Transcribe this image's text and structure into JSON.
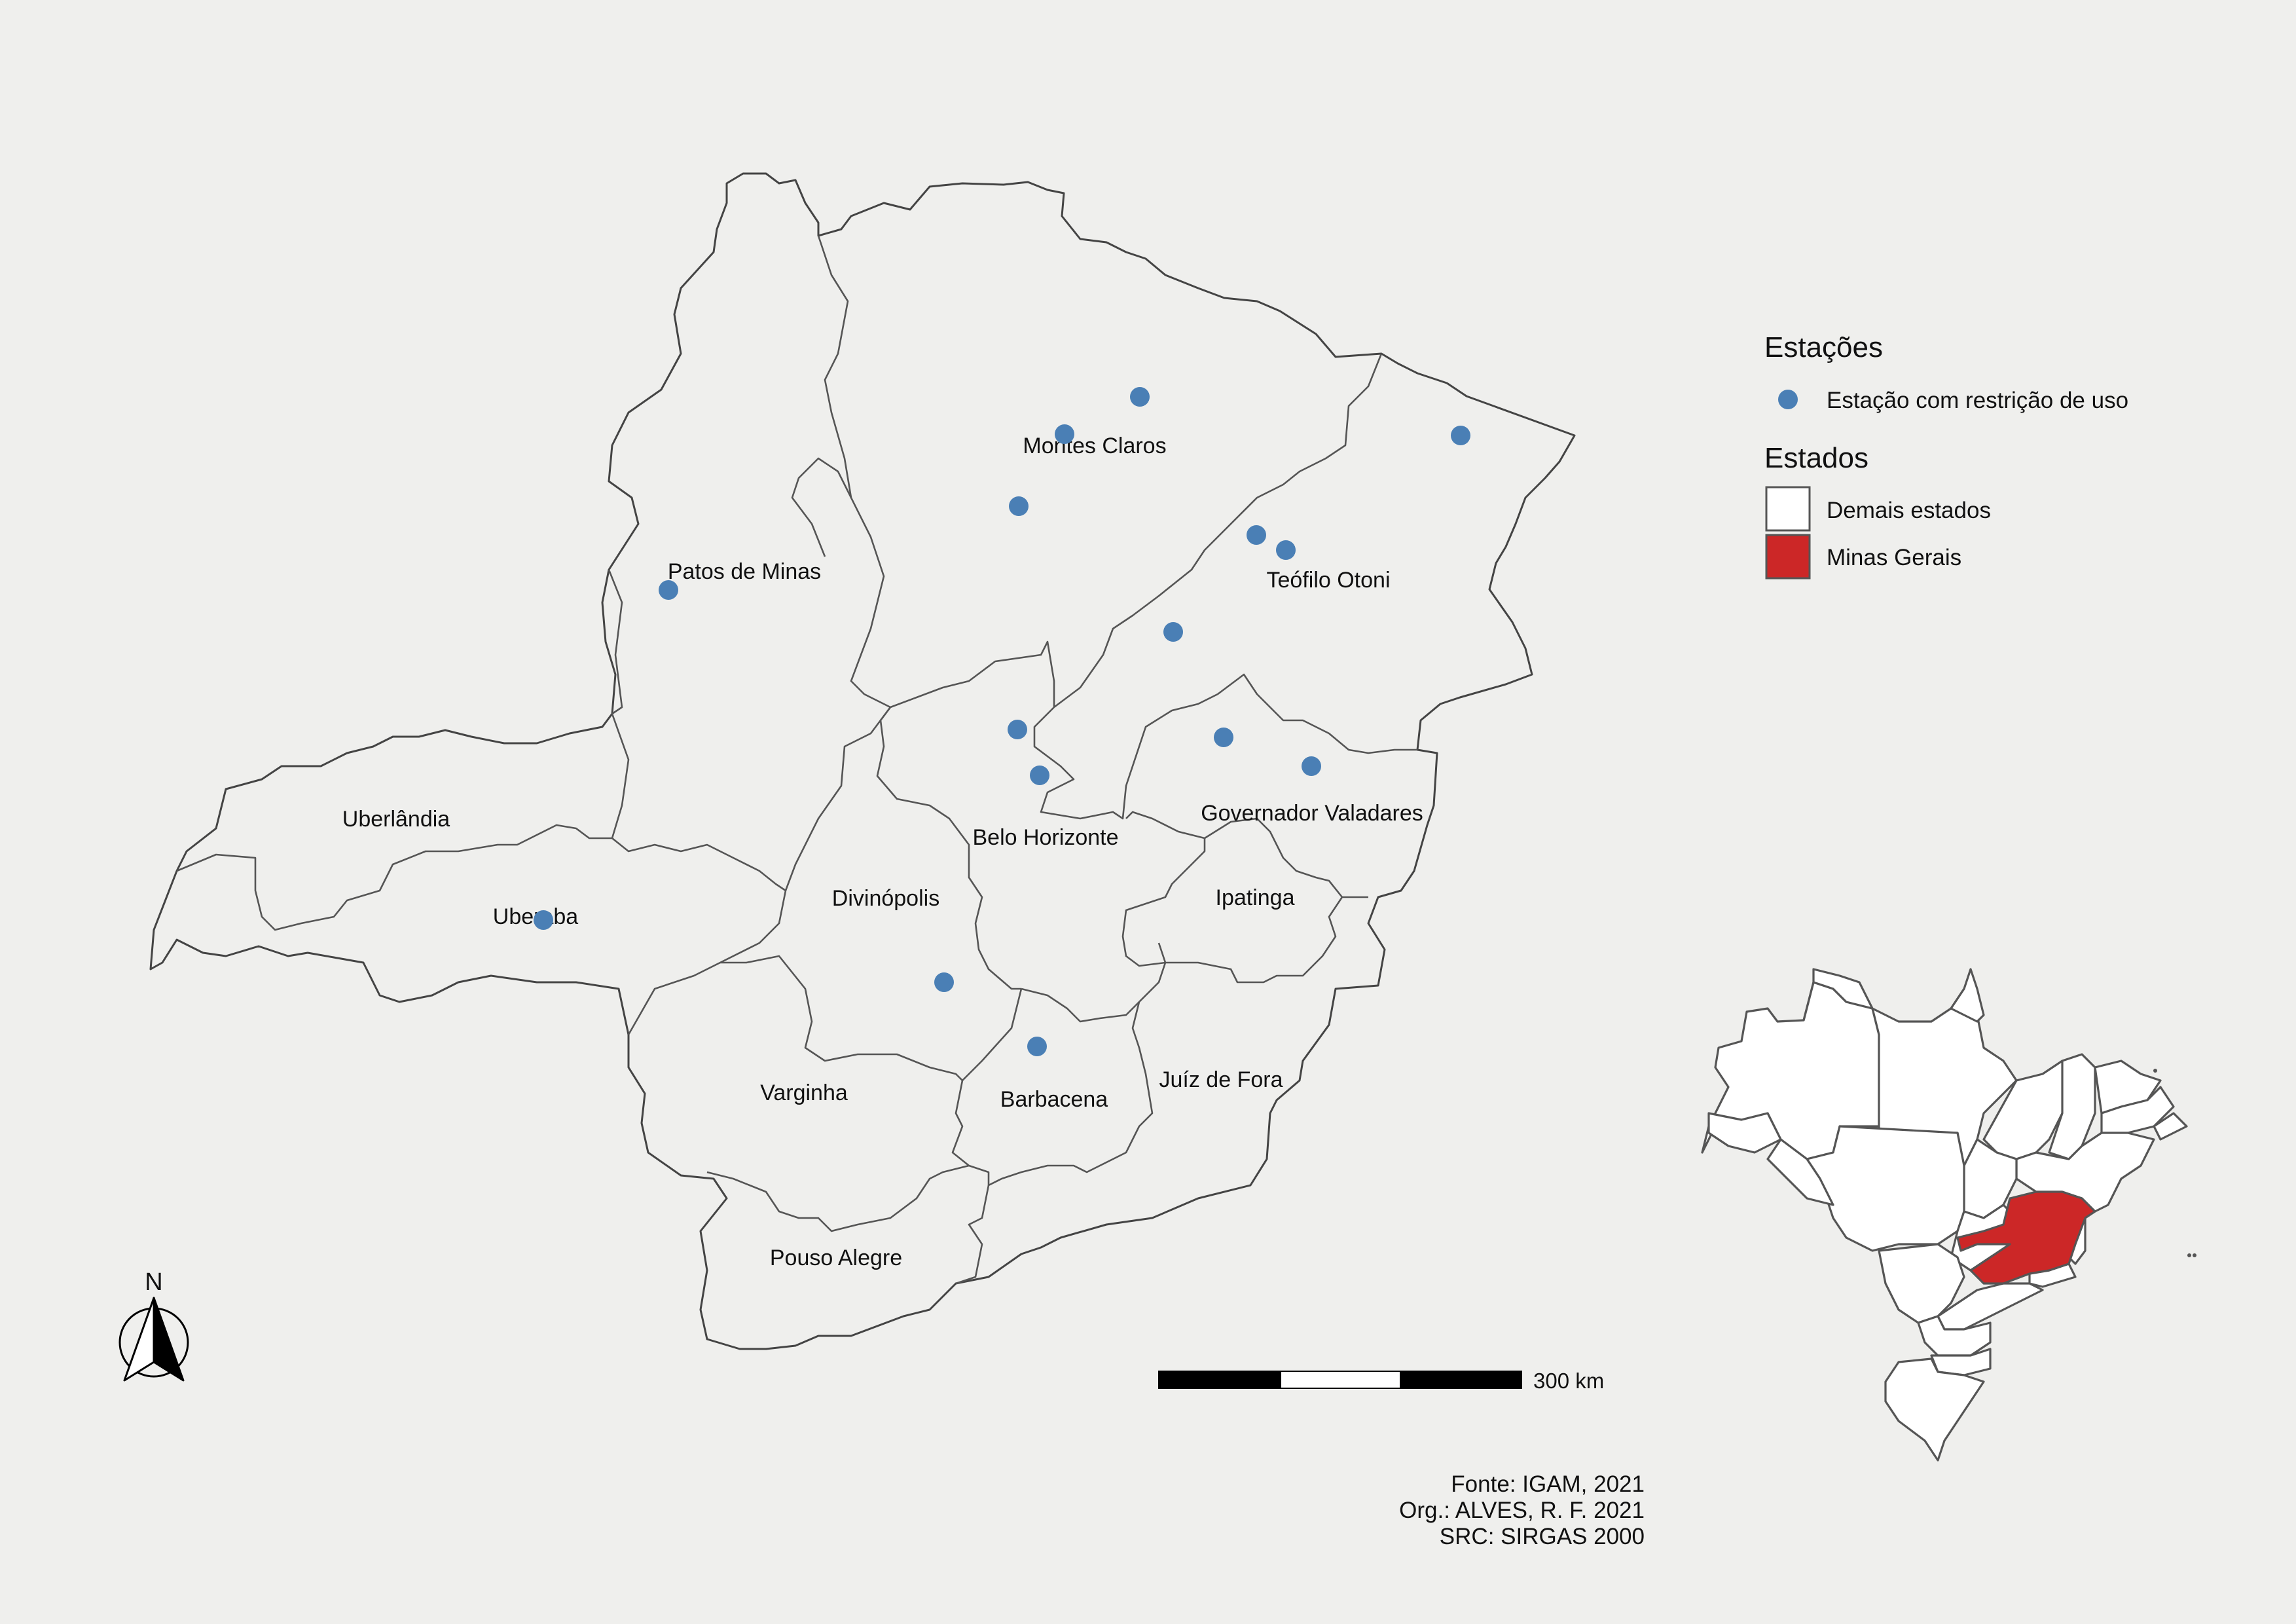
{
  "map": {
    "regions": [
      {
        "name": "Montes Claros"
      },
      {
        "name": "Teófilo Otoni"
      },
      {
        "name": "Patos de Minas"
      },
      {
        "name": "Uberlândia"
      },
      {
        "name": "Uberaba"
      },
      {
        "name": "Belo Horizonte"
      },
      {
        "name": "Governador Valadares"
      },
      {
        "name": "Divinópolis"
      },
      {
        "name": "Ipatinga"
      },
      {
        "name": "Varginha"
      },
      {
        "name": "Barbacena"
      },
      {
        "name": "Juíz de Fora"
      },
      {
        "name": "Pouso Alegre"
      }
    ],
    "station_count": 14,
    "station_color": "#4a7fb5",
    "highlight_color": "#cc2727"
  },
  "legend": {
    "stations_title": "Estações",
    "station_label": "Estação com restrição de uso",
    "states_title": "Estados",
    "other_states_label": "Demais estados",
    "minas_label": "Minas Gerais"
  },
  "scale_bar": {
    "label": "300 km"
  },
  "north_arrow": {
    "label": "N"
  },
  "credits": {
    "source": "Fonte: IGAM, 2021",
    "org": "Org.: ALVES, R. F. 2021",
    "src": "SRC: SIRGAS 2000"
  }
}
